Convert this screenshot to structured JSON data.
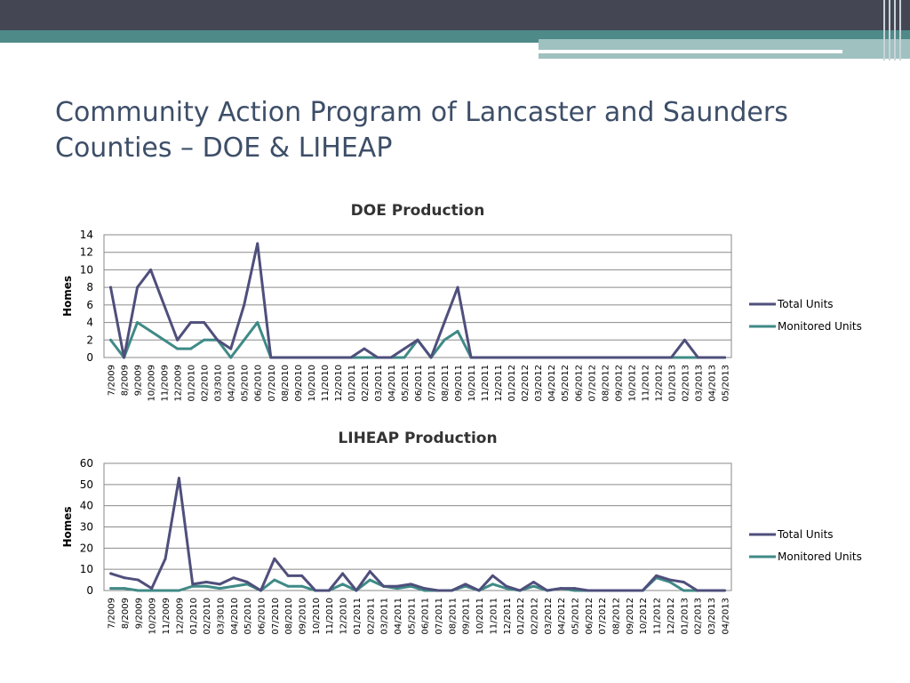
{
  "slide": {
    "title": "Community Action Program of Lancaster and Saunders\nCounties – DOE & LIHEAP"
  },
  "colors": {
    "total": "#4f4f7c",
    "monitored": "#3f8a86",
    "title": "#3d4e68",
    "topbar": "#444654",
    "teal": "#4e8a88"
  },
  "chart_data": [
    {
      "type": "line",
      "title": "DOE Production",
      "ylabel": "Homes",
      "xlabel": "",
      "ylim": [
        0,
        14
      ],
      "yticks": [
        0,
        2,
        4,
        6,
        8,
        10,
        12,
        14
      ],
      "grid": true,
      "legend": "right",
      "categories": [
        "7/2009",
        "8/2009",
        "9/2009",
        "10/2009",
        "11/2009",
        "12/2009",
        "01/2010",
        "02/2010",
        "03/3010",
        "04/2010",
        "05/2010",
        "06/2010",
        "07/2010",
        "08/2010",
        "09/2010",
        "10/2010",
        "11/2010",
        "12/2010",
        "01/2011",
        "02/2011",
        "03/2011",
        "04/2011",
        "05/2011",
        "06/2011",
        "07/2011",
        "08/2011",
        "09/2011",
        "10/2011",
        "11/2011",
        "12/2011",
        "01/2012",
        "02/2012",
        "03/2012",
        "04/2012",
        "05/2012",
        "06/2012",
        "07/2012",
        "08/2012",
        "09/2012",
        "10/2012",
        "11/2012",
        "12/2012",
        "01/2013",
        "02/2013",
        "03/2013",
        "04/2013",
        "05/2013"
      ],
      "series": [
        {
          "name": "Total Units",
          "values": [
            8,
            0,
            8,
            10,
            6,
            2,
            4,
            4,
            2,
            1,
            6,
            13,
            0,
            0,
            0,
            0,
            0,
            0,
            0,
            1,
            0,
            0,
            1,
            2,
            0,
            4,
            8,
            0,
            0,
            0,
            0,
            0,
            0,
            0,
            0,
            0,
            0,
            0,
            0,
            0,
            0,
            0,
            0,
            2,
            0,
            0,
            0
          ]
        },
        {
          "name": "Monitored Units",
          "values": [
            2,
            0,
            4,
            3,
            2,
            1,
            1,
            2,
            2,
            0,
            2,
            4,
            0,
            0,
            0,
            0,
            0,
            0,
            0,
            0,
            0,
            0,
            0,
            2,
            0,
            2,
            3,
            0,
            0,
            0,
            0,
            0,
            0,
            0,
            0,
            0,
            0,
            0,
            0,
            0,
            0,
            0,
            0,
            0,
            0,
            0,
            0
          ]
        }
      ]
    },
    {
      "type": "line",
      "title": "LIHEAP Production",
      "ylabel": "Homes",
      "xlabel": "",
      "ylim": [
        0,
        60
      ],
      "yticks": [
        0,
        10,
        20,
        30,
        40,
        50,
        60
      ],
      "grid": true,
      "legend": "right",
      "categories": [
        "7/2009",
        "8/2009",
        "9/2009",
        "10/2009",
        "11/2009",
        "12/2009",
        "01/2010",
        "02/2010",
        "03/3010",
        "04/2010",
        "05/2010",
        "06/2010",
        "07/2010",
        "08/2010",
        "09/2010",
        "10/2010",
        "11/2010",
        "12/2010",
        "01/2011",
        "02/2011",
        "03/2011",
        "04/2011",
        "05/2011",
        "06/2011",
        "07/2011",
        "08/2011",
        "09/2011",
        "10/2011",
        "11/2011",
        "12/2011",
        "01/2012",
        "02/2012",
        "03/2012",
        "04/2012",
        "05/2012",
        "06/2012",
        "07/2012",
        "08/2012",
        "09/2012",
        "10/2012",
        "11/2012",
        "12/2012",
        "01/2013",
        "02/2013",
        "03/2013",
        "04/2013"
      ],
      "series": [
        {
          "name": "Total Units",
          "values": [
            8,
            6,
            5,
            1,
            15,
            53,
            3,
            4,
            3,
            6,
            4,
            0,
            15,
            7,
            7,
            0,
            0,
            8,
            0,
            9,
            2,
            2,
            3,
            1,
            0,
            0,
            3,
            0,
            7,
            2,
            0,
            4,
            0,
            1,
            1,
            0,
            0,
            0,
            0,
            0,
            7,
            5,
            4,
            0,
            0,
            0
          ]
        },
        {
          "name": "Monitored Units",
          "values": [
            1,
            1,
            0,
            0,
            0,
            0,
            2,
            2,
            1,
            2,
            3,
            0,
            5,
            2,
            2,
            0,
            0,
            3,
            0,
            5,
            2,
            1,
            2,
            0,
            0,
            0,
            2,
            0,
            3,
            1,
            0,
            2,
            0,
            1,
            0,
            0,
            0,
            0,
            0,
            0,
            6,
            4,
            0,
            0,
            0,
            0
          ]
        }
      ]
    }
  ]
}
